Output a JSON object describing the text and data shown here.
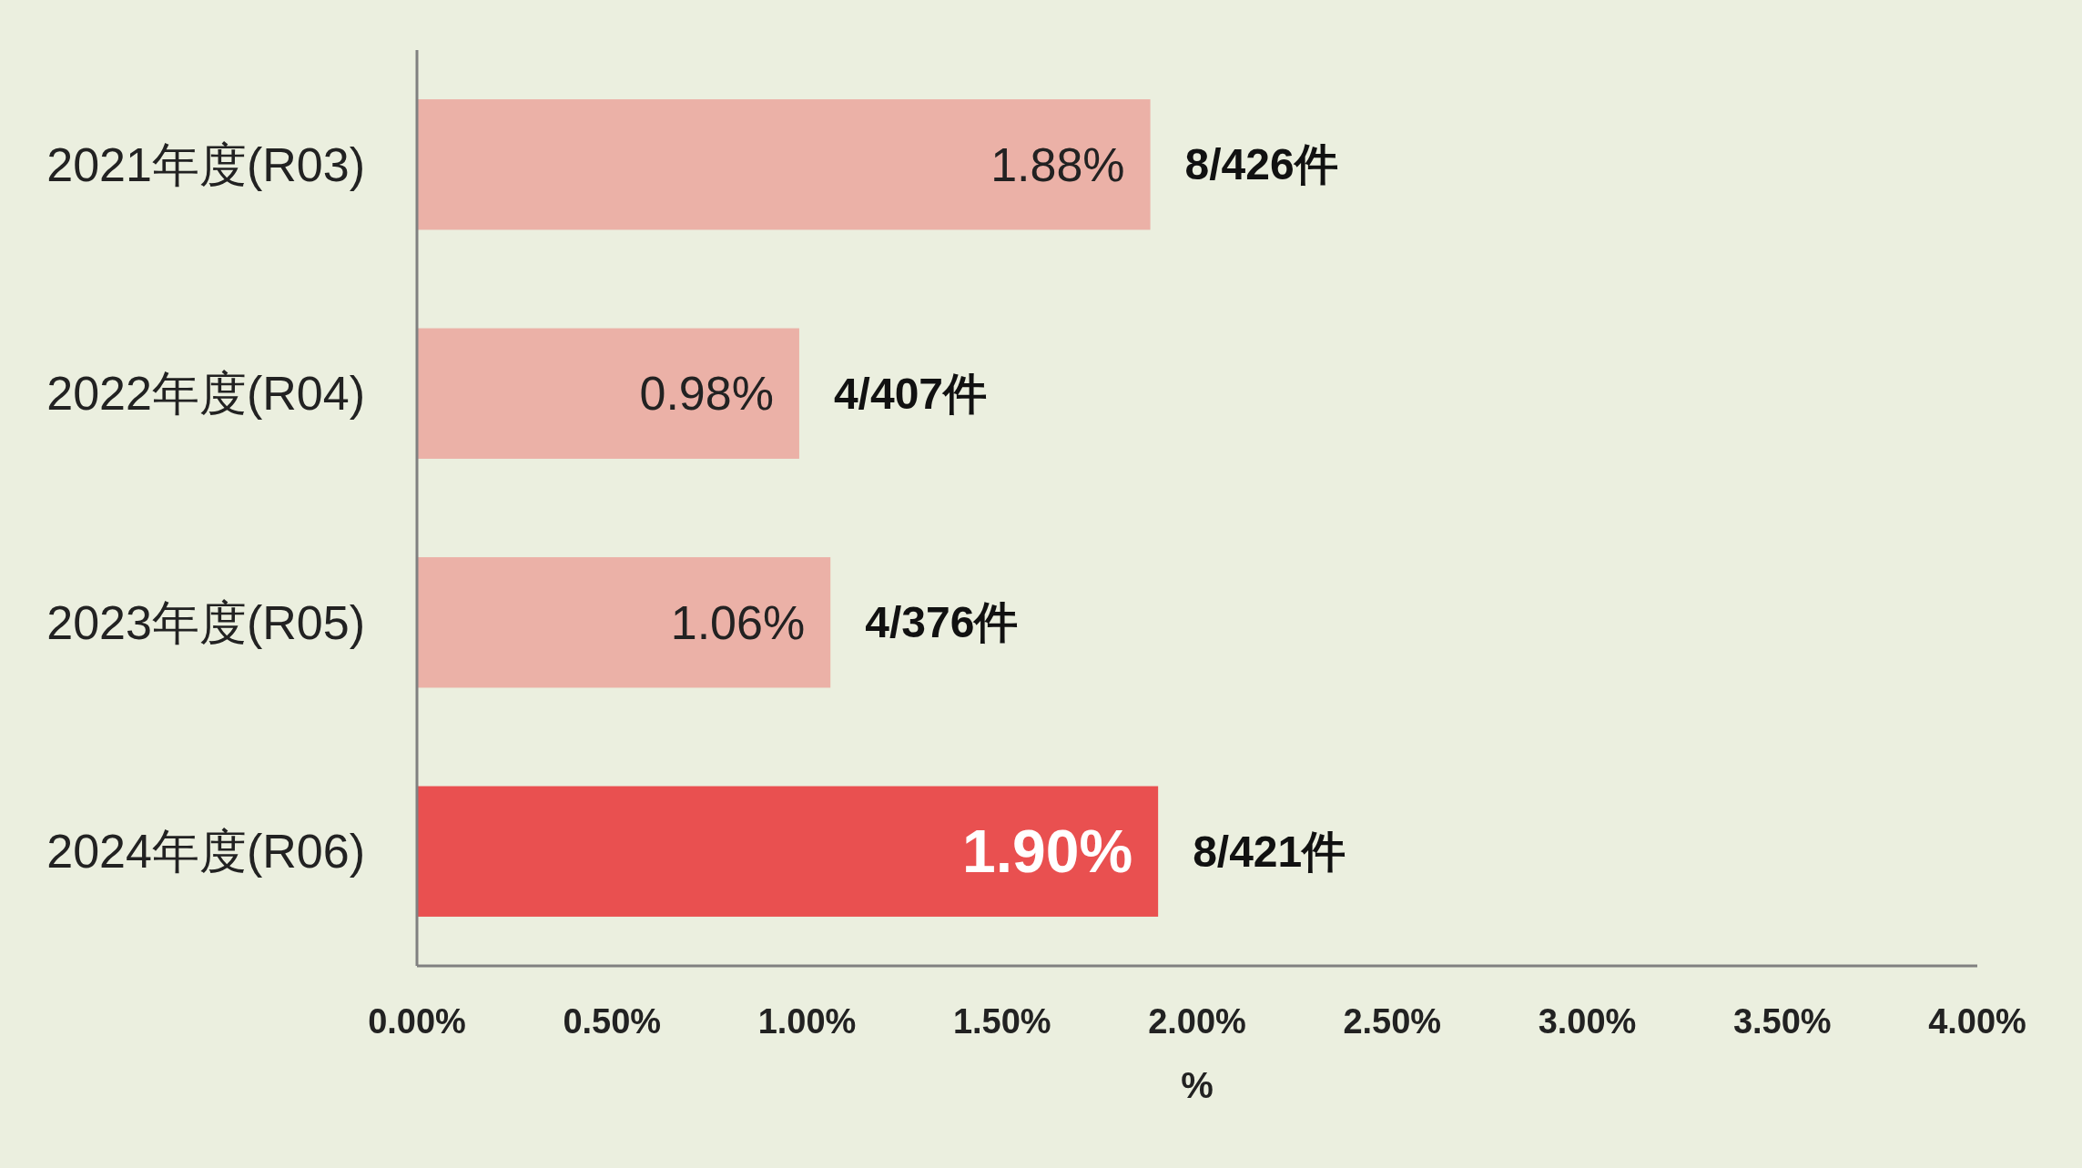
{
  "chart_data": {
    "type": "bar",
    "orientation": "horizontal",
    "xlabel": "%",
    "categories": [
      "2021年度(R03)",
      "2022年度(R04)",
      "2023年度(R05)",
      "2024年度(R06)"
    ],
    "values": [
      1.88,
      0.98,
      1.06,
      1.9
    ],
    "colors": [
      "#ebb1a7",
      "#ebb1a7",
      "#ebb1a7",
      "#e95050"
    ],
    "value_labels": [
      "1.88%",
      "0.98%",
      "1.06%",
      "1.90%"
    ],
    "xlim": [
      0,
      4
    ],
    "xticks": [
      {
        "value": 0,
        "label": "0.00%"
      },
      {
        "value": 0.5,
        "label": "0.50%"
      },
      {
        "value": 1,
        "label": "1.00%"
      },
      {
        "value": 1.5,
        "label": "1.50%"
      },
      {
        "value": 2,
        "label": "2.00%"
      },
      {
        "value": 2.5,
        "label": "2.50%"
      },
      {
        "value": 3,
        "label": "3.00%"
      },
      {
        "value": 3.5,
        "label": "3.50%"
      },
      {
        "value": 4,
        "label": "4.00%"
      }
    ],
    "annotations": [
      {
        "text": "8/426件",
        "x": 1.88,
        "y": "2021年度(R03)"
      },
      {
        "text": "4/407件",
        "x": 0.98,
        "y": "2022年度(R04)"
      },
      {
        "text": "4/376件",
        "x": 1.06,
        "y": "2023年度(R05)"
      },
      {
        "text": "8/421件",
        "x": 1.9,
        "y": "2024年度(R06)"
      }
    ],
    "grid": false
  }
}
